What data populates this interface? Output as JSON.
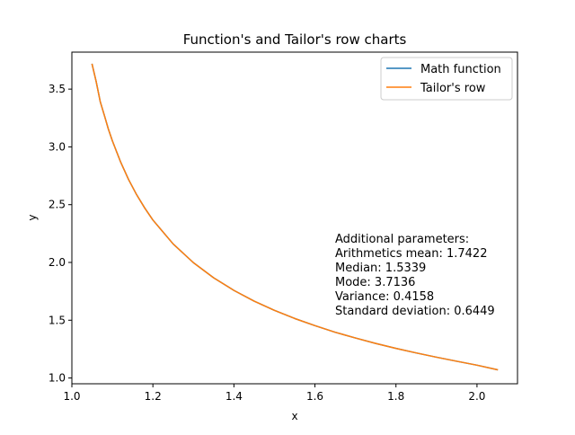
{
  "chart_data": {
    "type": "line",
    "title": "Function's and Tailor's row charts",
    "xlabel": "x",
    "ylabel": "y",
    "xlim": [
      1.0,
      2.1
    ],
    "ylim": [
      0.95,
      3.82
    ],
    "xticks": [
      "1.0",
      "1.2",
      "1.4",
      "1.6",
      "1.8",
      "2.0"
    ],
    "yticks": [
      "1.0",
      "1.5",
      "2.0",
      "2.5",
      "3.0",
      "3.5"
    ],
    "grid": false,
    "legend_position": "upper right",
    "series": [
      {
        "name": "Math function",
        "color": "#1f77b4",
        "x": [
          1.05,
          1.06,
          1.07,
          1.08,
          1.09,
          1.1,
          1.12,
          1.14,
          1.16,
          1.18,
          1.2,
          1.25,
          1.3,
          1.35,
          1.4,
          1.45,
          1.5,
          1.55,
          1.6,
          1.65,
          1.7,
          1.75,
          1.8,
          1.85,
          1.9,
          1.95,
          2.0,
          2.05
        ],
        "y": [
          3.714,
          3.565,
          3.392,
          3.275,
          3.155,
          3.052,
          2.872,
          2.717,
          2.585,
          2.47,
          2.367,
          2.16,
          1.998,
          1.867,
          1.758,
          1.665,
          1.585,
          1.515,
          1.453,
          1.396,
          1.346,
          1.299,
          1.256,
          1.217,
          1.18,
          1.145,
          1.111,
          1.072
        ]
      },
      {
        "name": "Tailor's row",
        "color": "#ff7f0e",
        "x": [
          1.05,
          1.06,
          1.07,
          1.08,
          1.09,
          1.1,
          1.12,
          1.14,
          1.16,
          1.18,
          1.2,
          1.25,
          1.3,
          1.35,
          1.4,
          1.45,
          1.5,
          1.55,
          1.6,
          1.65,
          1.7,
          1.75,
          1.8,
          1.85,
          1.9,
          1.95,
          2.0,
          2.05
        ],
        "y": [
          3.714,
          3.565,
          3.392,
          3.275,
          3.155,
          3.052,
          2.872,
          2.717,
          2.585,
          2.47,
          2.367,
          2.16,
          1.998,
          1.867,
          1.758,
          1.665,
          1.585,
          1.515,
          1.453,
          1.396,
          1.346,
          1.299,
          1.256,
          1.217,
          1.18,
          1.145,
          1.111,
          1.072
        ]
      }
    ],
    "annotation": [
      "Additional parameters:",
      "Arithmetics mean: 1.7422",
      "Median: 1.5339",
      "Mode: 3.7136",
      "Variance: 0.4158",
      "Standard deviation: 0.6449"
    ]
  }
}
